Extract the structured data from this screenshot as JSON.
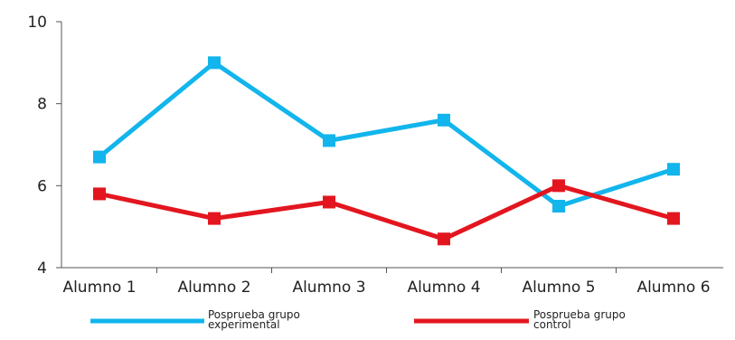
{
  "chart_data": {
    "type": "line",
    "categories": [
      "Alumno 1",
      "Alumno 2",
      "Alumno 3",
      "Alumno 4",
      "Alumno 5",
      "Alumno 6"
    ],
    "series": [
      {
        "name": "Posprueba grupo experimental",
        "name_lines": [
          "Posprueba grupo",
          "experimental"
        ],
        "color": "#12b5ec",
        "marker": "square",
        "values": [
          6.7,
          9.0,
          7.1,
          7.6,
          5.5,
          6.4
        ]
      },
      {
        "name": "Posprueba grupo control",
        "name_lines": [
          "Posprueba grupo",
          "control"
        ],
        "color": "#e3161f",
        "marker": "square",
        "values": [
          5.8,
          5.2,
          5.6,
          4.7,
          6.0,
          5.2
        ]
      }
    ],
    "yticks": [
      "4",
      "6",
      "8",
      "10"
    ],
    "ylim": [
      4,
      10
    ],
    "title": "",
    "xlabel": "",
    "ylabel": "",
    "grid": false,
    "legend_position": "bottom"
  }
}
